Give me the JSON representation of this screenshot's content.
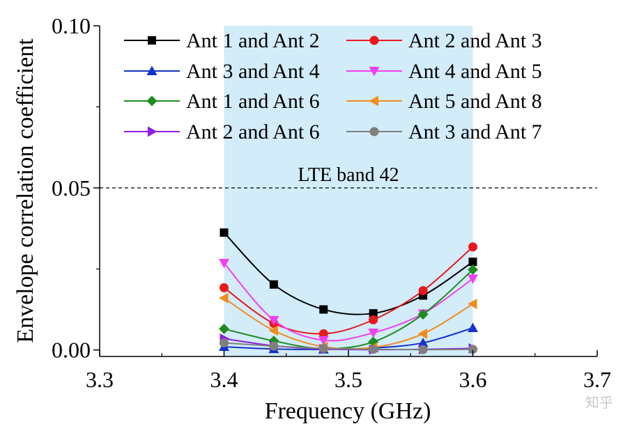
{
  "chart_data": {
    "type": "line",
    "xlabel": "Frequency (GHz)",
    "ylabel": "Envelope correlation coefficient",
    "xlim": [
      3.3,
      3.7
    ],
    "ylim": [
      -0.002,
      0.1
    ],
    "x_ticks": [
      "3.3",
      "3.4",
      "3.5",
      "3.6",
      "3.7"
    ],
    "y_ticks": [
      "0.00",
      "0.05",
      "0.10"
    ],
    "x_tick_values": [
      3.3,
      3.4,
      3.5,
      3.6,
      3.7
    ],
    "y_tick_values": [
      0.0,
      0.05,
      0.1
    ],
    "band": {
      "x_start": 3.4,
      "x_end": 3.6,
      "label": "LTE band 42",
      "color": "#d2ecf9"
    },
    "threshold": {
      "y": 0.05,
      "style": "dashed"
    },
    "grid": false,
    "legend_position": "top",
    "x": [
      3.4,
      3.44,
      3.48,
      3.52,
      3.56,
      3.6
    ],
    "series": [
      {
        "name": "Ant 1 and Ant 2",
        "color": "#000000",
        "marker": "square",
        "values": [
          0.0362,
          0.0202,
          0.0125,
          0.0113,
          0.0168,
          0.0272
        ]
      },
      {
        "name": "Ant 2 and Ant 3",
        "color": "#e8191c",
        "marker": "circle",
        "values": [
          0.0192,
          0.0082,
          0.005,
          0.0093,
          0.0183,
          0.0318
        ]
      },
      {
        "name": "Ant 3 and Ant 4",
        "color": "#1432c8",
        "marker": "triangle-up",
        "values": [
          0.001,
          0.0003,
          0.0002,
          0.0006,
          0.0022,
          0.0068
        ]
      },
      {
        "name": "Ant 4 and Ant 5",
        "color": "#f040f0",
        "marker": "triangle-down",
        "values": [
          0.0268,
          0.0092,
          0.003,
          0.0053,
          0.0112,
          0.022
        ]
      },
      {
        "name": "Ant 1 and Ant 6",
        "color": "#1e8c1e",
        "marker": "diamond",
        "values": [
          0.0065,
          0.0028,
          0.0004,
          0.0025,
          0.011,
          0.0248
        ]
      },
      {
        "name": "Ant 5 and Ant 8",
        "color": "#f08c1e",
        "marker": "triangle-left",
        "values": [
          0.016,
          0.006,
          0.001,
          0.0008,
          0.005,
          0.0142
        ]
      },
      {
        "name": "Ant 2 and Ant 6",
        "color": "#8c1ee6",
        "marker": "triangle-right",
        "values": [
          0.0035,
          0.0013,
          0.0003,
          0.0001,
          0.0002,
          0.0005
        ]
      },
      {
        "name": "Ant 3 and Ant 7",
        "color": "#7f7f7f",
        "marker": "circle",
        "values": [
          0.0022,
          0.0012,
          0.0005,
          0.0002,
          0.0001,
          0.0002
        ]
      }
    ]
  },
  "watermark": "知乎"
}
